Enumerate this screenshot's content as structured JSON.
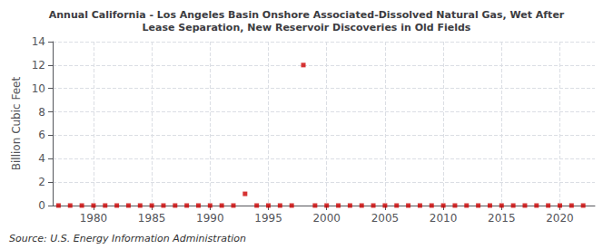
{
  "chart_data": {
    "type": "scatter",
    "title": "Annual California - Los Angeles Basin Onshore Associated-Dissolved Natural Gas, Wet After\nLease Separation, New Reservoir Discoveries in Old Fields",
    "ylabel": "Billion Cubic Feet",
    "annotation": "Source: U.S. Energy Information Administration",
    "x": [
      1977,
      1978,
      1979,
      1980,
      1981,
      1982,
      1983,
      1984,
      1985,
      1986,
      1987,
      1988,
      1989,
      1990,
      1991,
      1992,
      1993,
      1994,
      1995,
      1996,
      1997,
      1998,
      1999,
      2000,
      2001,
      2002,
      2003,
      2004,
      2005,
      2006,
      2007,
      2008,
      2009,
      2010,
      2011,
      2012,
      2013,
      2014,
      2015,
      2016,
      2017,
      2018,
      2019,
      2020,
      2021,
      2022
    ],
    "values": [
      0,
      0,
      0,
      0,
      0,
      0,
      0,
      0,
      0,
      0,
      0,
      0,
      0,
      0,
      0,
      0,
      1.0,
      0,
      0,
      0,
      0,
      12.0,
      0,
      0,
      0,
      0,
      0,
      0,
      0,
      0,
      0,
      0,
      0,
      0,
      0,
      0,
      0,
      0,
      0,
      0,
      0,
      0,
      0,
      0,
      0,
      0
    ],
    "color": "#cc0000",
    "marker": "square",
    "xlim": [
      1976.5,
      2023
    ],
    "ylim": [
      0,
      14
    ],
    "xticks": [
      1980,
      1985,
      1990,
      1995,
      2000,
      2005,
      2010,
      2015,
      2020
    ],
    "yticks": [
      0,
      2,
      4,
      6,
      8,
      10,
      12,
      14
    ],
    "grid": true
  }
}
